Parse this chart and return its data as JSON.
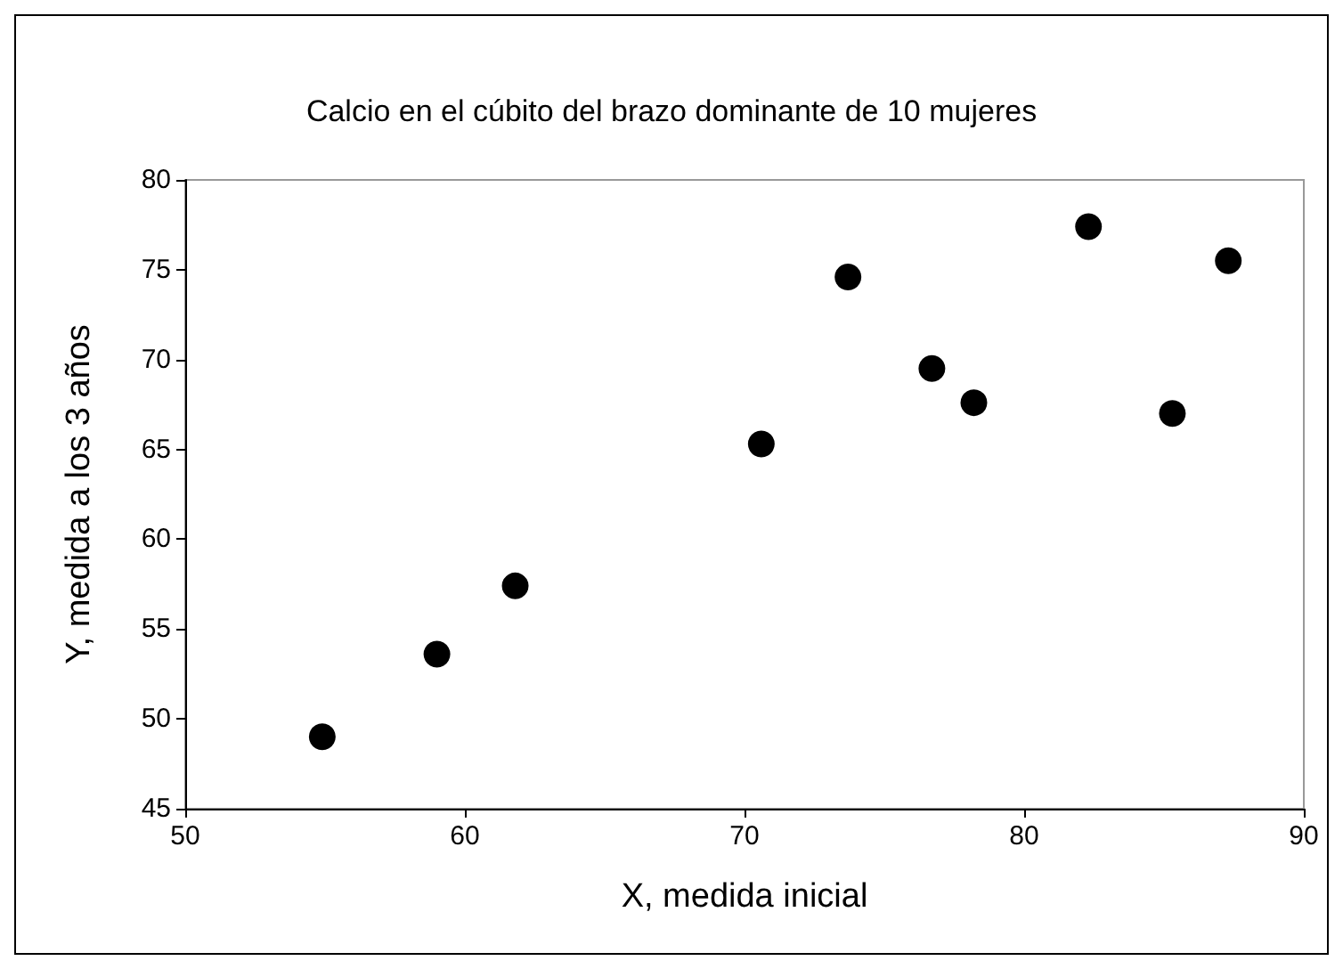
{
  "chart_data": {
    "type": "scatter",
    "title": "Calcio en el cúbito del brazo dominante de 10 mujeres",
    "xlabel": "X, medida inicial",
    "ylabel": "Y, medida a los 3 años",
    "x": [
      54.9,
      59.0,
      61.8,
      70.6,
      73.7,
      76.7,
      78.2,
      82.3,
      85.3,
      87.3
    ],
    "series": [
      {
        "color": "#000000",
        "values": [
          49.0,
          53.6,
          57.4,
          65.3,
          74.6,
          69.5,
          67.6,
          77.4,
          67.0,
          75.5
        ]
      }
    ],
    "xlim": [
      50,
      90
    ],
    "xticks": [
      50,
      60,
      70,
      80,
      90
    ],
    "ylim": [
      45,
      80
    ],
    "yticks": [
      45,
      50,
      55,
      60,
      65,
      70,
      75,
      80
    ],
    "grid": false,
    "marker": "circle"
  }
}
